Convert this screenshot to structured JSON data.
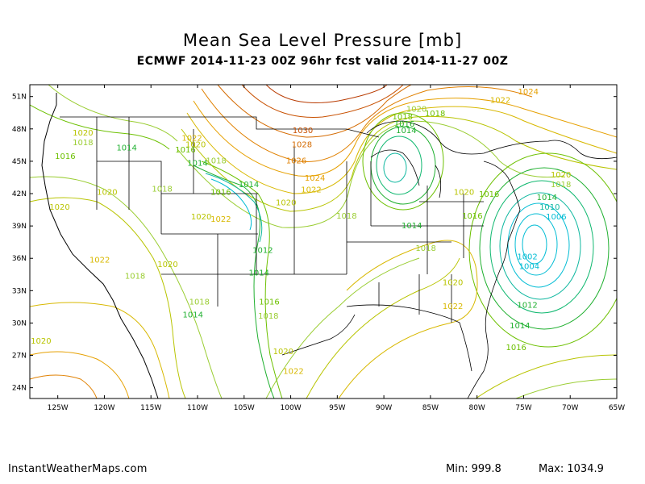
{
  "header": {
    "title": "Mean Sea Level Pressure [mb]",
    "subtitle": "ECMWF 2014-11-23 00Z 96hr fcst valid 2014-11-27 00Z"
  },
  "axes": {
    "lat_labels": [
      "51N",
      "48N",
      "45N",
      "42N",
      "39N",
      "36N",
      "33N",
      "30N",
      "27N",
      "24N"
    ],
    "lon_labels": [
      "125W",
      "120W",
      "115W",
      "110W",
      "105W",
      "100W",
      "95W",
      "90W",
      "85W",
      "80W",
      "75W",
      "70W",
      "65W"
    ]
  },
  "isobar_labels": [
    {
      "text": "1024",
      "lon": -74.5,
      "lat": 51.2,
      "color": "#e6a000"
    },
    {
      "text": "1022",
      "lon": -77.5,
      "lat": 50.4,
      "color": "#d8b800"
    },
    {
      "text": "1020",
      "lon": -86.5,
      "lat": 49.6,
      "color": "#9acd32"
    },
    {
      "text": "1018",
      "lon": -84.5,
      "lat": 49.2,
      "color": "#6cc000"
    },
    {
      "text": "1018",
      "lon": -88.0,
      "lat": 48.9,
      "color": "#6cc000"
    },
    {
      "text": "1016",
      "lon": -87.8,
      "lat": 48.2,
      "color": "#20b020"
    },
    {
      "text": "1014",
      "lon": -87.6,
      "lat": 47.6,
      "color": "#20b030"
    },
    {
      "text": "1030",
      "lon": -98.7,
      "lat": 47.6,
      "color": "#c85000"
    },
    {
      "text": "1028",
      "lon": -98.8,
      "lat": 46.3,
      "color": "#d46a00"
    },
    {
      "text": "1026",
      "lon": -99.4,
      "lat": 44.8,
      "color": "#e08000"
    },
    {
      "text": "1024",
      "lon": -97.4,
      "lat": 43.2,
      "color": "#e6a000"
    },
    {
      "text": "1022",
      "lon": -97.8,
      "lat": 42.1,
      "color": "#d8b800"
    },
    {
      "text": "1020",
      "lon": -100.5,
      "lat": 40.9,
      "color": "#b8c400"
    },
    {
      "text": "1018",
      "lon": -94.0,
      "lat": 39.7,
      "color": "#9acd32"
    },
    {
      "text": "1014",
      "lon": -87.0,
      "lat": 38.8,
      "color": "#20b030"
    },
    {
      "text": "1016",
      "lon": -80.5,
      "lat": 39.7,
      "color": "#6cc000"
    },
    {
      "text": "1016",
      "lon": -78.7,
      "lat": 41.7,
      "color": "#6cc000"
    },
    {
      "text": "1018",
      "lon": -85.5,
      "lat": 36.7,
      "color": "#9acd32"
    },
    {
      "text": "1020",
      "lon": -81.4,
      "lat": 41.9,
      "color": "#b8c400"
    },
    {
      "text": "1020",
      "lon": -71.0,
      "lat": 43.5,
      "color": "#b8c400"
    },
    {
      "text": "1018",
      "lon": -71.0,
      "lat": 42.6,
      "color": "#9acd32"
    },
    {
      "text": "1014",
      "lon": -72.5,
      "lat": 41.4,
      "color": "#20b030"
    },
    {
      "text": "1010",
      "lon": -72.2,
      "lat": 40.5,
      "color": "#10b8a0"
    },
    {
      "text": "1006",
      "lon": -71.5,
      "lat": 39.6,
      "color": "#00bcd4"
    },
    {
      "text": "1002",
      "lon": -74.6,
      "lat": 35.9,
      "color": "#00bcd4"
    },
    {
      "text": "1004",
      "lon": -74.4,
      "lat": 35.0,
      "color": "#00bcd4"
    },
    {
      "text": "1012",
      "lon": -74.6,
      "lat": 31.4,
      "color": "#20b030"
    },
    {
      "text": "1014",
      "lon": -75.4,
      "lat": 29.5,
      "color": "#20b030"
    },
    {
      "text": "1016",
      "lon": -75.8,
      "lat": 27.5,
      "color": "#6cc000"
    },
    {
      "text": "1020",
      "lon": -82.6,
      "lat": 33.5,
      "color": "#b8c400"
    },
    {
      "text": "1022",
      "lon": -82.6,
      "lat": 31.3,
      "color": "#d8b800"
    },
    {
      "text": "1020",
      "lon": -122.3,
      "lat": 47.4,
      "color": "#b8c400"
    },
    {
      "text": "1018",
      "lon": -122.3,
      "lat": 46.5,
      "color": "#9acd32"
    },
    {
      "text": "1014",
      "lon": -117.6,
      "lat": 46.0,
      "color": "#20b030"
    },
    {
      "text": "1016",
      "lon": -124.2,
      "lat": 45.2,
      "color": "#6cc000"
    },
    {
      "text": "1022",
      "lon": -110.6,
      "lat": 46.9,
      "color": "#d8b800"
    },
    {
      "text": "1020",
      "lon": -110.2,
      "lat": 46.3,
      "color": "#b8c400"
    },
    {
      "text": "1016",
      "lon": -111.3,
      "lat": 45.8,
      "color": "#6cc000"
    },
    {
      "text": "1018",
      "lon": -108.0,
      "lat": 44.8,
      "color": "#9acd32"
    },
    {
      "text": "1014",
      "lon": -110.0,
      "lat": 44.6,
      "color": "#20b030"
    },
    {
      "text": "1014",
      "lon": -104.5,
      "lat": 42.6,
      "color": "#20b030"
    },
    {
      "text": "1016",
      "lon": -107.5,
      "lat": 41.9,
      "color": "#6cc000"
    },
    {
      "text": "1018",
      "lon": -113.8,
      "lat": 42.2,
      "color": "#9acd32"
    },
    {
      "text": "1020",
      "lon": -119.7,
      "lat": 41.9,
      "color": "#b8c400"
    },
    {
      "text": "1020",
      "lon": -124.8,
      "lat": 40.5,
      "color": "#b8c400"
    },
    {
      "text": "1020",
      "lon": -109.6,
      "lat": 39.6,
      "color": "#b8c400"
    },
    {
      "text": "1022",
      "lon": -107.5,
      "lat": 39.4,
      "color": "#d8b800"
    },
    {
      "text": "1012",
      "lon": -103.0,
      "lat": 36.5,
      "color": "#20b030"
    },
    {
      "text": "1014",
      "lon": -103.4,
      "lat": 34.4,
      "color": "#20b030"
    },
    {
      "text": "1016",
      "lon": -102.3,
      "lat": 31.7,
      "color": "#6cc000"
    },
    {
      "text": "1018",
      "lon": -102.4,
      "lat": 30.4,
      "color": "#9acd32"
    },
    {
      "text": "1022",
      "lon": -120.5,
      "lat": 35.6,
      "color": "#d8b800"
    },
    {
      "text": "1020",
      "lon": -113.2,
      "lat": 35.2,
      "color": "#b8c400"
    },
    {
      "text": "1018",
      "lon": -116.7,
      "lat": 34.1,
      "color": "#9acd32"
    },
    {
      "text": "1018",
      "lon": -109.8,
      "lat": 31.7,
      "color": "#9acd32"
    },
    {
      "text": "1014",
      "lon": -110.5,
      "lat": 30.5,
      "color": "#20b030"
    },
    {
      "text": "1020",
      "lon": -100.8,
      "lat": 27.1,
      "color": "#b8c400"
    },
    {
      "text": "1022",
      "lon": -99.7,
      "lat": 25.3,
      "color": "#d8b800"
    },
    {
      "text": "1020",
      "lon": -126.8,
      "lat": 28.1,
      "color": "#b8c400"
    }
  ],
  "footer": {
    "site": "InstantWeatherMaps.com",
    "min": "Min:  999.8",
    "max": "Max: 1034.9"
  }
}
